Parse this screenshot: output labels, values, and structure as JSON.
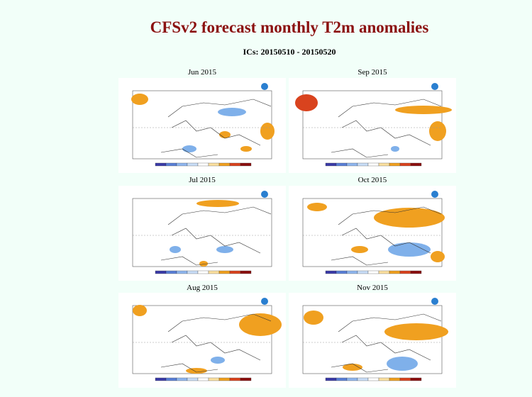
{
  "header": {
    "title": "CFSv2 forecast monthly T2m anomalies",
    "subtitle": "ICs: 20150510 - 20150520"
  },
  "panels": [
    {
      "label": "Jun 2015"
    },
    {
      "label": "Sep 2015"
    },
    {
      "label": "Jul 2015"
    },
    {
      "label": "Oct 2015"
    },
    {
      "label": "Aug 2015"
    },
    {
      "label": "Nov 2015"
    }
  ]
}
